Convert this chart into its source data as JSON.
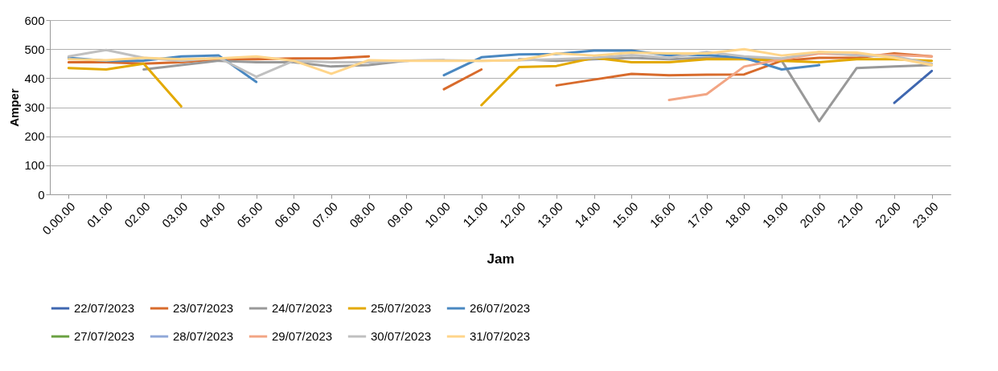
{
  "chart_data": {
    "type": "line",
    "xlabel": "Jam",
    "ylabel": "Amper",
    "categories": [
      "0.00.00",
      "01.00",
      "02.00",
      "03.00",
      "04.00",
      "05.00",
      "06.00",
      "07.00",
      "08.00",
      "09.00",
      "10.00",
      "11.00",
      "12.00",
      "13.00",
      "14.00",
      "15.00",
      "16.00",
      "17.00",
      "18.00",
      "19.00",
      "20.00",
      "21.00",
      "22.00",
      "23.00"
    ],
    "series": [
      {
        "name": "22/07/2023",
        "color": "#3f67b0",
        "values": [
          null,
          null,
          null,
          null,
          null,
          null,
          null,
          null,
          null,
          null,
          null,
          null,
          null,
          null,
          null,
          null,
          null,
          null,
          null,
          null,
          null,
          null,
          315,
          425
        ]
      },
      {
        "name": "23/07/2023",
        "color": "#d86b2c",
        "values": [
          455,
          455,
          450,
          455,
          465,
          465,
          468,
          468,
          475,
          null,
          362,
          430,
          null,
          375,
          395,
          415,
          410,
          412,
          413,
          460,
          470,
          470,
          485,
          475
        ]
      },
      {
        "name": "24/07/2023",
        "color": "#999999",
        "values": [
          null,
          null,
          430,
          445,
          460,
          455,
          455,
          440,
          445,
          460,
          462,
          null,
          465,
          460,
          465,
          470,
          465,
          470,
          470,
          460,
          252,
          435,
          440,
          445
        ]
      },
      {
        "name": "25/07/2023",
        "color": "#e3a900",
        "values": [
          435,
          430,
          450,
          303,
          null,
          null,
          null,
          null,
          null,
          null,
          null,
          307,
          438,
          442,
          470,
          455,
          455,
          465,
          465,
          460,
          455,
          465,
          465,
          460
        ]
      },
      {
        "name": "26/07/2023",
        "color": "#4a88c1",
        "values": [
          470,
          460,
          460,
          475,
          478,
          387,
          null,
          null,
          null,
          null,
          410,
          472,
          482,
          483,
          495,
          495,
          478,
          480,
          470,
          430,
          445,
          null,
          null,
          null
        ]
      },
      {
        "name": "27/07/2023",
        "color": "#6aa141",
        "values": [
          null,
          null,
          null,
          null,
          null,
          null,
          null,
          null,
          null,
          null,
          null,
          null,
          null,
          null,
          null,
          null,
          null,
          null,
          null,
          null,
          null,
          null,
          null,
          null
        ]
      },
      {
        "name": "28/07/2023",
        "color": "#90a8d8",
        "values": [
          null,
          null,
          null,
          null,
          null,
          null,
          null,
          null,
          null,
          null,
          null,
          null,
          null,
          null,
          null,
          null,
          null,
          null,
          null,
          null,
          null,
          null,
          null,
          null
        ]
      },
      {
        "name": "29/07/2023",
        "color": "#f2a584",
        "values": [
          null,
          null,
          null,
          null,
          null,
          null,
          null,
          null,
          null,
          null,
          null,
          null,
          null,
          null,
          null,
          null,
          325,
          345,
          440,
          465,
          485,
          480,
          480,
          475
        ]
      },
      {
        "name": "30/07/2023",
        "color": "#c0c0c0",
        "values": [
          475,
          497,
          470,
          460,
          470,
          405,
          460,
          455,
          455,
          460,
          462,
          460,
          462,
          465,
          470,
          480,
          470,
          490,
          475,
          468,
          490,
          478,
          475,
          450
        ]
      },
      {
        "name": "31/07/2023",
        "color": "#ffd58a",
        "values": [
          465,
          462,
          470,
          465,
          468,
          475,
          460,
          415,
          462,
          460,
          460,
          460,
          462,
          485,
          478,
          488,
          485,
          485,
          500,
          478,
          490,
          488,
          470,
          445
        ]
      }
    ],
    "ylim": [
      0,
      600
    ],
    "yticks": [
      0,
      100,
      200,
      300,
      400,
      500,
      600
    ],
    "grid": "y",
    "legend": "bottom",
    "line_style": "solid"
  }
}
